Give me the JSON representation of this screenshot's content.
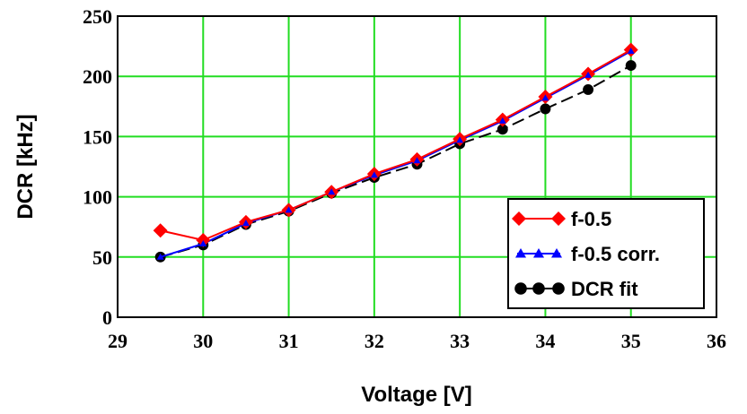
{
  "chart_data": {
    "type": "line",
    "xlabel": "Voltage [V]",
    "ylabel": "DCR [kHz]",
    "xlim": [
      29,
      36
    ],
    "ylim": [
      0,
      250
    ],
    "xticks": [
      "29",
      "30",
      "31",
      "32",
      "33",
      "34",
      "35",
      "36"
    ],
    "yticks": [
      "0",
      "50",
      "100",
      "150",
      "200",
      "250"
    ],
    "grid": true,
    "grid_color": "#22dd22",
    "legend_position": "bottom-right",
    "series": [
      {
        "name": "f-0.5",
        "color": "#ff0000",
        "marker": "diamond",
        "line": "solid",
        "x": [
          29.5,
          30,
          30.5,
          31,
          31.5,
          32,
          32.5,
          33,
          33.5,
          34,
          34.5,
          35
        ],
        "y": [
          72,
          64,
          79,
          89,
          104,
          119,
          131,
          148,
          164,
          183,
          202,
          222
        ]
      },
      {
        "name": "f-0.5 corr.",
        "color": "#0000ff",
        "marker": "triangle",
        "line": "solid",
        "x": [
          29.5,
          30,
          30.5,
          31,
          31.5,
          32,
          32.5,
          33,
          33.5,
          34,
          34.5,
          35
        ],
        "y": [
          50,
          61,
          78,
          89,
          104,
          118,
          130,
          147,
          163,
          182,
          201,
          221
        ]
      },
      {
        "name": "DCR fit",
        "color": "#000000",
        "marker": "circle",
        "line": "dashed",
        "x": [
          29.5,
          30,
          30.5,
          31,
          31.5,
          32,
          32.5,
          33,
          33.5,
          34,
          34.5,
          35
        ],
        "y": [
          50,
          60,
          77,
          88,
          103,
          116,
          127,
          144,
          156,
          173,
          189,
          209
        ]
      }
    ]
  }
}
